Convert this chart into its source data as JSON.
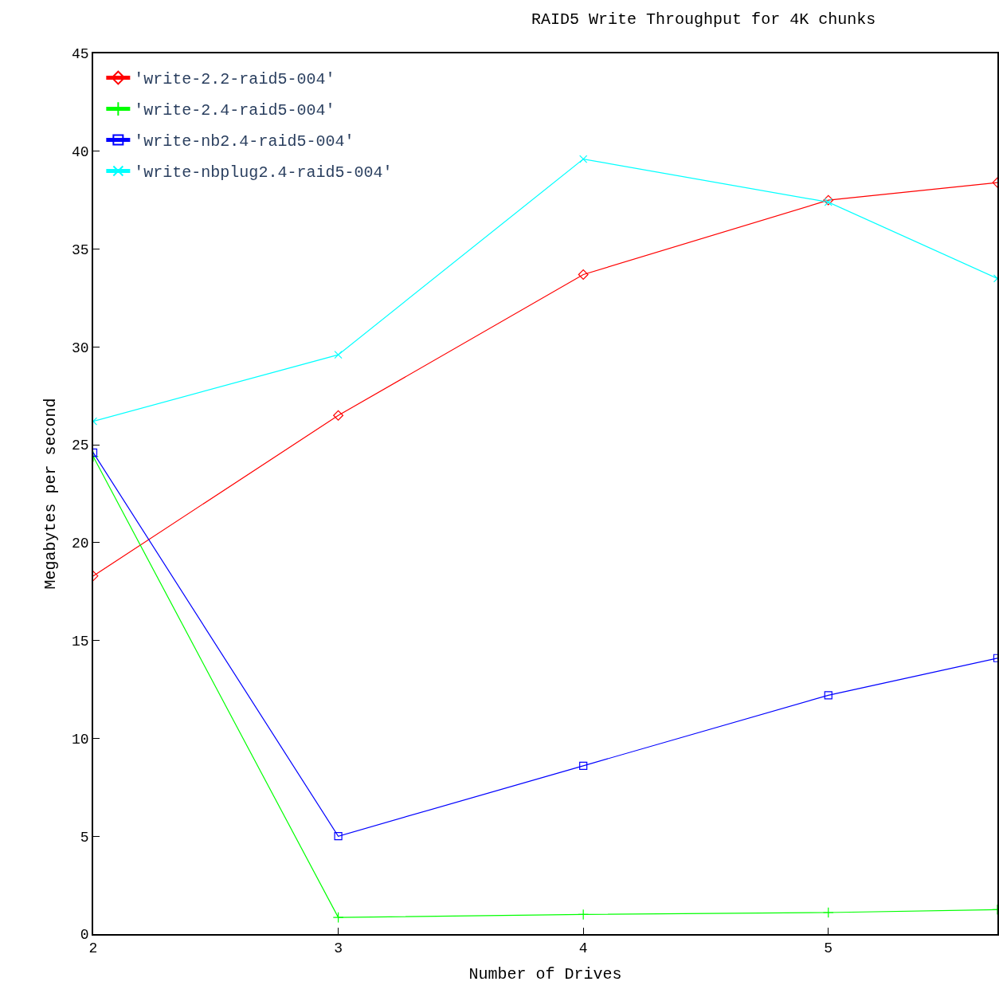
{
  "chart_data": {
    "type": "line",
    "title": "RAID5 Write Throughput for 4K chunks",
    "xlabel": "Number of Drives",
    "ylabel": "Megabytes per second",
    "x": [
      2,
      3,
      4,
      5,
      5.69
    ],
    "xlim": [
      2,
      5.69
    ],
    "xticks": [
      2,
      3,
      4,
      5
    ],
    "ylim": [
      0,
      45
    ],
    "yticks": [
      0,
      5,
      10,
      15,
      20,
      25,
      30,
      35,
      40,
      45
    ],
    "legend": "top left",
    "series": [
      {
        "name": "'write-2.2-raid5-004'",
        "color": "#ff0000",
        "marker": "diamond",
        "values": [
          18.3,
          26.5,
          33.7,
          37.5,
          38.4
        ]
      },
      {
        "name": "'write-2.4-raid5-004'",
        "color": "#00ff00",
        "marker": "cross",
        "values": [
          24.4,
          0.85,
          1.0,
          1.1,
          1.25
        ]
      },
      {
        "name": "'write-nb2.4-raid5-004'",
        "color": "#0000ff",
        "marker": "square",
        "values": [
          24.6,
          5.0,
          8.6,
          12.2,
          14.1
        ]
      },
      {
        "name": "'write-nbplug2.4-raid5-004'",
        "color": "#00ffff",
        "marker": "x",
        "values": [
          26.2,
          29.6,
          39.6,
          37.4,
          33.5
        ]
      }
    ]
  }
}
